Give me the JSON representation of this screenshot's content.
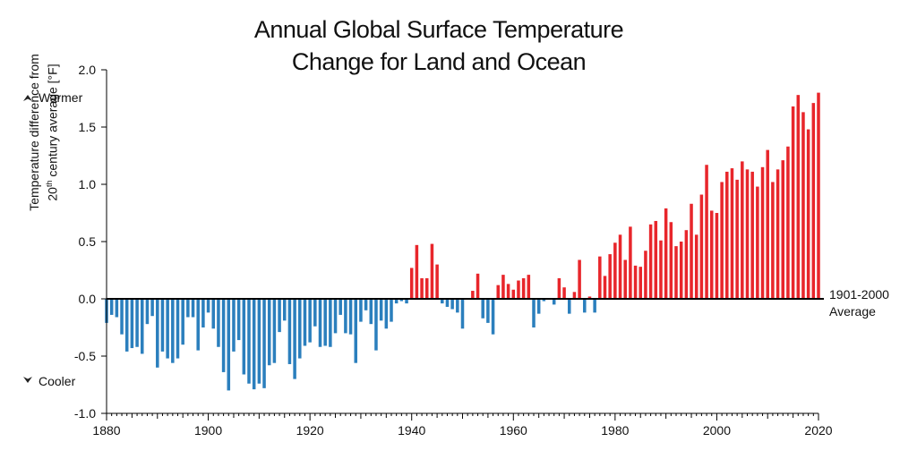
{
  "chart_data": {
    "type": "bar",
    "title": [
      "Annual Global Surface Temperature",
      "Change for Land and Ocean"
    ],
    "ylabel_line1": "Temperature difference from",
    "ylabel_line2_pre": "20",
    "ylabel_line2_sup": "th",
    "ylabel_line2_post": " century average [°F]",
    "xlabel": "",
    "ylim": [
      -1.0,
      2.0
    ],
    "xlim": [
      1880,
      2020
    ],
    "yticks": [
      2.0,
      1.5,
      1.0,
      0.5,
      0.0,
      -0.5,
      -1.0
    ],
    "ytick_labels": [
      "2.0",
      "1.5",
      "1.0",
      "0.5",
      "0.0",
      "-0.5",
      "-1.0"
    ],
    "xticks": [
      1880,
      1900,
      1920,
      1940,
      1960,
      1980,
      2000,
      2020
    ],
    "xtick_labels": [
      "1880",
      "1900",
      "1920",
      "1940",
      "1960",
      "1980",
      "2000",
      "2020"
    ],
    "warmer_label": "Warmer",
    "cooler_label": "Cooler",
    "baseline_label": [
      "1901-2000",
      "Average"
    ],
    "colors": {
      "positive": "#e8262b",
      "negative": "#2b7fbd",
      "axis": "#000000"
    },
    "years": [
      1880,
      1881,
      1882,
      1883,
      1884,
      1885,
      1886,
      1887,
      1888,
      1889,
      1890,
      1891,
      1892,
      1893,
      1894,
      1895,
      1896,
      1897,
      1898,
      1899,
      1900,
      1901,
      1902,
      1903,
      1904,
      1905,
      1906,
      1907,
      1908,
      1909,
      1910,
      1911,
      1912,
      1913,
      1914,
      1915,
      1916,
      1917,
      1918,
      1919,
      1920,
      1921,
      1922,
      1923,
      1924,
      1925,
      1926,
      1927,
      1928,
      1929,
      1930,
      1931,
      1932,
      1933,
      1934,
      1935,
      1936,
      1937,
      1938,
      1939,
      1940,
      1941,
      1942,
      1943,
      1944,
      1945,
      1946,
      1947,
      1948,
      1949,
      1950,
      1951,
      1952,
      1953,
      1954,
      1955,
      1956,
      1957,
      1958,
      1959,
      1960,
      1961,
      1962,
      1963,
      1964,
      1965,
      1966,
      1967,
      1968,
      1969,
      1970,
      1971,
      1972,
      1973,
      1974,
      1975,
      1976,
      1977,
      1978,
      1979,
      1980,
      1981,
      1982,
      1983,
      1984,
      1985,
      1986,
      1987,
      1988,
      1989,
      1990,
      1991,
      1992,
      1993,
      1994,
      1995,
      1996,
      1997,
      1998,
      1999,
      2000,
      2001,
      2002,
      2003,
      2004,
      2005,
      2006,
      2007,
      2008,
      2009,
      2010,
      2011,
      2012,
      2013,
      2014,
      2015,
      2016,
      2017,
      2018,
      2019,
      2020
    ],
    "values": [
      -0.21,
      -0.14,
      -0.16,
      -0.31,
      -0.46,
      -0.43,
      -0.42,
      -0.48,
      -0.22,
      -0.15,
      -0.6,
      -0.46,
      -0.52,
      -0.56,
      -0.52,
      -0.4,
      -0.16,
      -0.16,
      -0.45,
      -0.25,
      -0.12,
      -0.26,
      -0.42,
      -0.64,
      -0.8,
      -0.46,
      -0.36,
      -0.66,
      -0.74,
      -0.79,
      -0.74,
      -0.78,
      -0.58,
      -0.56,
      -0.29,
      -0.19,
      -0.57,
      -0.7,
      -0.52,
      -0.41,
      -0.38,
      -0.24,
      -0.42,
      -0.41,
      -0.42,
      -0.3,
      -0.14,
      -0.3,
      -0.31,
      -0.56,
      -0.2,
      -0.1,
      -0.22,
      -0.45,
      -0.19,
      -0.26,
      -0.2,
      -0.04,
      -0.02,
      -0.04,
      0.27,
      0.47,
      0.18,
      0.18,
      0.48,
      0.3,
      -0.04,
      -0.07,
      -0.09,
      -0.12,
      -0.26,
      0.0,
      0.07,
      0.22,
      -0.17,
      -0.21,
      -0.31,
      0.12,
      0.21,
      0.13,
      0.08,
      0.16,
      0.18,
      0.21,
      -0.25,
      -0.13,
      -0.02,
      0.0,
      -0.05,
      0.18,
      0.1,
      -0.13,
      0.06,
      0.34,
      -0.12,
      0.02,
      -0.12,
      0.37,
      0.2,
      0.39,
      0.49,
      0.56,
      0.34,
      0.63,
      0.29,
      0.28,
      0.42,
      0.65,
      0.68,
      0.51,
      0.79,
      0.67,
      0.46,
      0.5,
      0.6,
      0.83,
      0.56,
      0.91,
      1.17,
      0.77,
      0.75,
      1.02,
      1.11,
      1.14,
      1.04,
      1.2,
      1.13,
      1.11,
      0.98,
      1.15,
      1.3,
      1.02,
      1.13,
      1.21,
      1.33,
      1.68,
      1.78,
      1.63,
      1.48,
      1.71,
      1.8
    ]
  }
}
